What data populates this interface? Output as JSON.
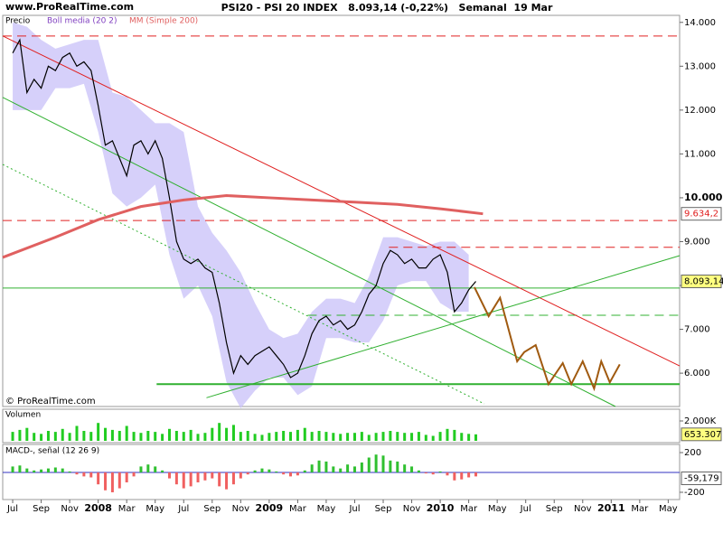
{
  "chart_data": [
    {
      "type": "line",
      "source": "www.ProRealTime.com",
      "title": "PSI20 - PSI 20 INDEX   8.093,14 (-0,22%)   Semanal  19 Mar",
      "copyright": "© ProRealTime.com",
      "xlim": [
        -0.7,
        46.8
      ],
      "ylim": [
        5240,
        14160
      ],
      "yticks": [
        {
          "value": 14000,
          "label": "14.000"
        },
        {
          "value": 13000,
          "label": "13.000"
        },
        {
          "value": 12000,
          "label": "12.000"
        },
        {
          "value": 11000,
          "label": "11.000"
        },
        {
          "value": 10000,
          "label": "10.000",
          "bold": true
        },
        {
          "value": 9000,
          "label": "9.000"
        },
        {
          "value": 8000,
          "label": "8.000"
        },
        {
          "value": 7000,
          "label": "7.000"
        },
        {
          "value": 6000,
          "label": "6.000"
        }
      ],
      "series": [
        {
          "name": "Precio",
          "color": "#000000",
          "x": [
            0,
            0.5,
            1,
            1.5,
            2,
            2.5,
            3,
            3.5,
            4,
            4.5,
            5,
            5.5,
            6,
            6.5,
            7,
            7.5,
            8,
            8.5,
            9,
            9.5,
            10,
            10.5,
            11,
            11.5,
            12,
            12.5,
            13,
            13.5,
            14,
            14.5,
            15,
            15.5,
            16,
            16.5,
            17,
            17.5,
            18,
            18.5,
            19,
            19.5,
            20,
            20.5,
            21,
            21.5,
            22,
            22.5,
            23,
            23.5,
            24,
            24.5,
            25,
            25.5,
            26,
            26.5,
            27,
            27.5,
            28,
            28.5,
            29,
            29.5,
            30,
            30.5,
            31,
            31.5,
            32,
            32.5
          ],
          "values": [
            13300,
            13600,
            12400,
            12700,
            12500,
            13000,
            12900,
            13200,
            13300,
            13000,
            13100,
            12900,
            12100,
            11200,
            11300,
            10900,
            10500,
            11200,
            11300,
            11000,
            11300,
            10900,
            10000,
            9000,
            8600,
            8500,
            8600,
            8400,
            8300,
            7600,
            6700,
            6000,
            6400,
            6200,
            6400,
            6500,
            6600,
            6400,
            6200,
            5900,
            6000,
            6400,
            6900,
            7200,
            7300,
            7100,
            7200,
            7000,
            7100,
            7400,
            7800,
            8000,
            8500,
            8800,
            8700,
            8500,
            8600,
            8400,
            8400,
            8600,
            8700,
            8300,
            7400,
            7600,
            7900,
            8093.14
          ]
        },
        {
          "name": "MM (Simple 200)",
          "color": "#e06060",
          "x": [
            -0.7,
            3,
            6,
            9,
            12,
            15,
            18,
            21,
            24,
            27,
            30,
            33
          ],
          "values": [
            8640,
            9100,
            9500,
            9800,
            9950,
            10050,
            10000,
            9950,
            9900,
            9850,
            9750,
            9634.2
          ]
        }
      ],
      "bollinger": {
        "name": "Boll media (20 2)",
        "color": "#c8c0f8",
        "name_color": "#8040c0",
        "x": [
          0,
          1,
          2,
          3,
          4,
          5,
          6,
          7,
          8,
          9,
          10,
          11,
          12,
          13,
          14,
          15,
          16,
          17,
          18,
          19,
          20,
          21,
          22,
          23,
          24,
          25,
          26,
          27,
          28,
          29,
          30,
          31,
          32
        ],
        "upper": [
          14000,
          13900,
          13600,
          13400,
          13500,
          13600,
          13600,
          12400,
          12300,
          12000,
          11700,
          11700,
          11500,
          9800,
          9200,
          8800,
          8300,
          7600,
          7000,
          6800,
          6900,
          7400,
          7700,
          7700,
          7600,
          8200,
          9100,
          9100,
          9000,
          8900,
          9000,
          9000,
          8700
        ],
        "lower": [
          12000,
          12000,
          12000,
          12500,
          12500,
          12600,
          11500,
          10100,
          9800,
          10000,
          10300,
          8700,
          7700,
          8000,
          7300,
          5800,
          5200,
          5600,
          5900,
          5900,
          5500,
          5700,
          6800,
          6800,
          6700,
          6700,
          7200,
          8000,
          8100,
          8100,
          7600,
          7400,
          7400
        ]
      },
      "forecast": {
        "color": "#a05a10",
        "x": [
          32.4,
          33.4,
          34.2,
          35.4,
          35.9,
          36.7,
          37.6,
          38.6,
          39.2,
          40.0,
          40.8,
          41.3,
          41.9,
          42.6
        ],
        "values": [
          7960,
          7300,
          7720,
          6270,
          6480,
          6640,
          5750,
          6230,
          5750,
          6270,
          5650,
          6270,
          5790,
          6200
        ]
      },
      "levels": [
        {
          "value": 13690,
          "color": "#e02020",
          "dash": true,
          "from": -0.7
        },
        {
          "value": 9480,
          "color": "#e02020",
          "dash": true,
          "from": -0.7
        },
        {
          "value": 8870,
          "color": "#e02020",
          "dash": true,
          "from": 26.4
        },
        {
          "value": 7940,
          "color": "#30b030",
          "dash": false,
          "from": -0.7
        },
        {
          "value": 7320,
          "color": "#30b030",
          "dash": true,
          "from": 20.7
        },
        {
          "value": 5750,
          "color": "#30b030",
          "dash": false,
          "from": 10.1,
          "width": 2
        }
      ],
      "trendlines": [
        {
          "x": [
            -0.7,
            46.8
          ],
          "values": [
            13690,
            6165
          ],
          "color": "#e02020",
          "dash": false
        },
        {
          "x": [
            -0.7,
            42.3
          ],
          "values": [
            12290,
            5240
          ],
          "color": "#30b030",
          "dash": false
        },
        {
          "x": [
            -0.7,
            33.1
          ],
          "values": [
            10760,
            5300
          ],
          "color": "#30b030",
          "dash": true
        },
        {
          "x": [
            13.6,
            46.8
          ],
          "values": [
            5440,
            8680
          ],
          "color": "#30b030",
          "dash": false
        }
      ],
      "badges": [
        {
          "value": 9634.2,
          "label": "9.634,2",
          "color": "#ffffff",
          "text_color": "#e02020"
        },
        {
          "value": 8093.14,
          "label": "8.093,14",
          "color": "#ffff80",
          "text_color": "#000000"
        }
      ]
    },
    {
      "type": "bar",
      "title": "Volumen",
      "color": "#22cc22",
      "xlim": [
        -0.7,
        46.8
      ],
      "ylim": [
        0,
        3000000
      ],
      "yticks": [
        {
          "value": 2000000,
          "label": "2.000K"
        }
      ],
      "x": [
        0,
        0.5,
        1,
        1.5,
        2,
        2.5,
        3,
        3.5,
        4,
        4.5,
        5,
        5.5,
        6,
        6.5,
        7,
        7.5,
        8,
        8.5,
        9,
        9.5,
        10,
        10.5,
        11,
        11.5,
        12,
        12.5,
        13,
        13.5,
        14,
        14.5,
        15,
        15.5,
        16,
        16.5,
        17,
        17.5,
        18,
        18.5,
        19,
        19.5,
        20,
        20.5,
        21,
        21.5,
        22,
        22.5,
        23,
        23.5,
        24,
        24.5,
        25,
        25.5,
        26,
        26.5,
        27,
        27.5,
        28,
        28.5,
        29,
        29.5,
        30,
        30.5,
        31,
        31.5,
        32,
        32.5
      ],
      "values": [
        900000,
        1100000,
        1300000,
        800000,
        700000,
        1000000,
        900000,
        1200000,
        800000,
        1500000,
        1000000,
        900000,
        1800000,
        1300000,
        1100000,
        1000000,
        1500000,
        900000,
        800000,
        1000000,
        900000,
        700000,
        1200000,
        1000000,
        900000,
        1100000,
        700000,
        800000,
        1300000,
        1800000,
        1300000,
        1600000,
        900000,
        1000000,
        700000,
        600000,
        800000,
        900000,
        1000000,
        900000,
        1100000,
        1300000,
        900000,
        1000000,
        900000,
        800000,
        700000,
        800000,
        800000,
        900000,
        600000,
        800000,
        900000,
        1000000,
        900000,
        800000,
        800000,
        900000,
        600000,
        500000,
        900000,
        1200000,
        1100000,
        800000,
        700000,
        653307
      ],
      "badge": {
        "value": 653307,
        "label": "653.307",
        "color": "#ffff80"
      }
    },
    {
      "type": "bar",
      "title": "MACD-, señal (12 26 9)",
      "positive_color": "#30c030",
      "negative_color": "#f06060",
      "zero_color": "#3030c0",
      "xlim": [
        -0.7,
        46.8
      ],
      "ylim": [
        -264,
        273
      ],
      "yticks": [
        200,
        -200
      ],
      "x": [
        0,
        0.5,
        1,
        1.5,
        2,
        2.5,
        3,
        3.5,
        4,
        4.5,
        5,
        5.5,
        6,
        6.5,
        7,
        7.5,
        8,
        8.5,
        9,
        9.5,
        10,
        10.5,
        11,
        11.5,
        12,
        12.5,
        13,
        13.5,
        14,
        14.5,
        15,
        15.5,
        16,
        16.5,
        17,
        17.5,
        18,
        18.5,
        19,
        19.5,
        20,
        20.5,
        21,
        21.5,
        22,
        22.5,
        23,
        23.5,
        24,
        24.5,
        25,
        25.5,
        26,
        26.5,
        27,
        27.5,
        28,
        28.5,
        29,
        29.5,
        30,
        30.5,
        31,
        31.5,
        32,
        32.5
      ],
      "values": [
        60,
        70,
        40,
        20,
        30,
        40,
        50,
        40,
        10,
        -20,
        -40,
        -50,
        -120,
        -180,
        -200,
        -160,
        -100,
        -40,
        60,
        80,
        60,
        20,
        -60,
        -120,
        -160,
        -140,
        -100,
        -80,
        -60,
        -140,
        -170,
        -120,
        -60,
        -20,
        20,
        40,
        30,
        10,
        -20,
        -40,
        -30,
        20,
        80,
        120,
        110,
        60,
        40,
        80,
        60,
        100,
        150,
        180,
        170,
        120,
        110,
        80,
        60,
        20,
        -10,
        -20,
        10,
        -30,
        -80,
        -70,
        -50,
        -40
      ],
      "badge": {
        "value": -59.179,
        "label": "-59,179",
        "color": "#ffffff"
      },
      "xticks": [
        {
          "value": 0,
          "label": "Jul"
        },
        {
          "value": 2,
          "label": "Sep"
        },
        {
          "value": 4,
          "label": "Nov"
        },
        {
          "value": 6,
          "label": "2008",
          "bold": true
        },
        {
          "value": 8,
          "label": "Mar"
        },
        {
          "value": 10,
          "label": "May"
        },
        {
          "value": 12,
          "label": "Jul"
        },
        {
          "value": 14,
          "label": "Sep"
        },
        {
          "value": 16,
          "label": "Nov"
        },
        {
          "value": 18,
          "label": "2009",
          "bold": true
        },
        {
          "value": 20,
          "label": "Mar"
        },
        {
          "value": 22,
          "label": "May"
        },
        {
          "value": 24,
          "label": "Jul"
        },
        {
          "value": 26,
          "label": "Sep"
        },
        {
          "value": 28,
          "label": "Nov"
        },
        {
          "value": 30,
          "label": "2010",
          "bold": true
        },
        {
          "value": 32,
          "label": "Mar"
        },
        {
          "value": 34,
          "label": "May"
        },
        {
          "value": 36,
          "label": "Jul"
        },
        {
          "value": 38,
          "label": "Sep"
        },
        {
          "value": 40,
          "label": "Nov"
        },
        {
          "value": 42,
          "label": "2011",
          "bold": true
        },
        {
          "value": 44,
          "label": "Mar"
        },
        {
          "value": 46,
          "label": "May"
        }
      ]
    }
  ]
}
